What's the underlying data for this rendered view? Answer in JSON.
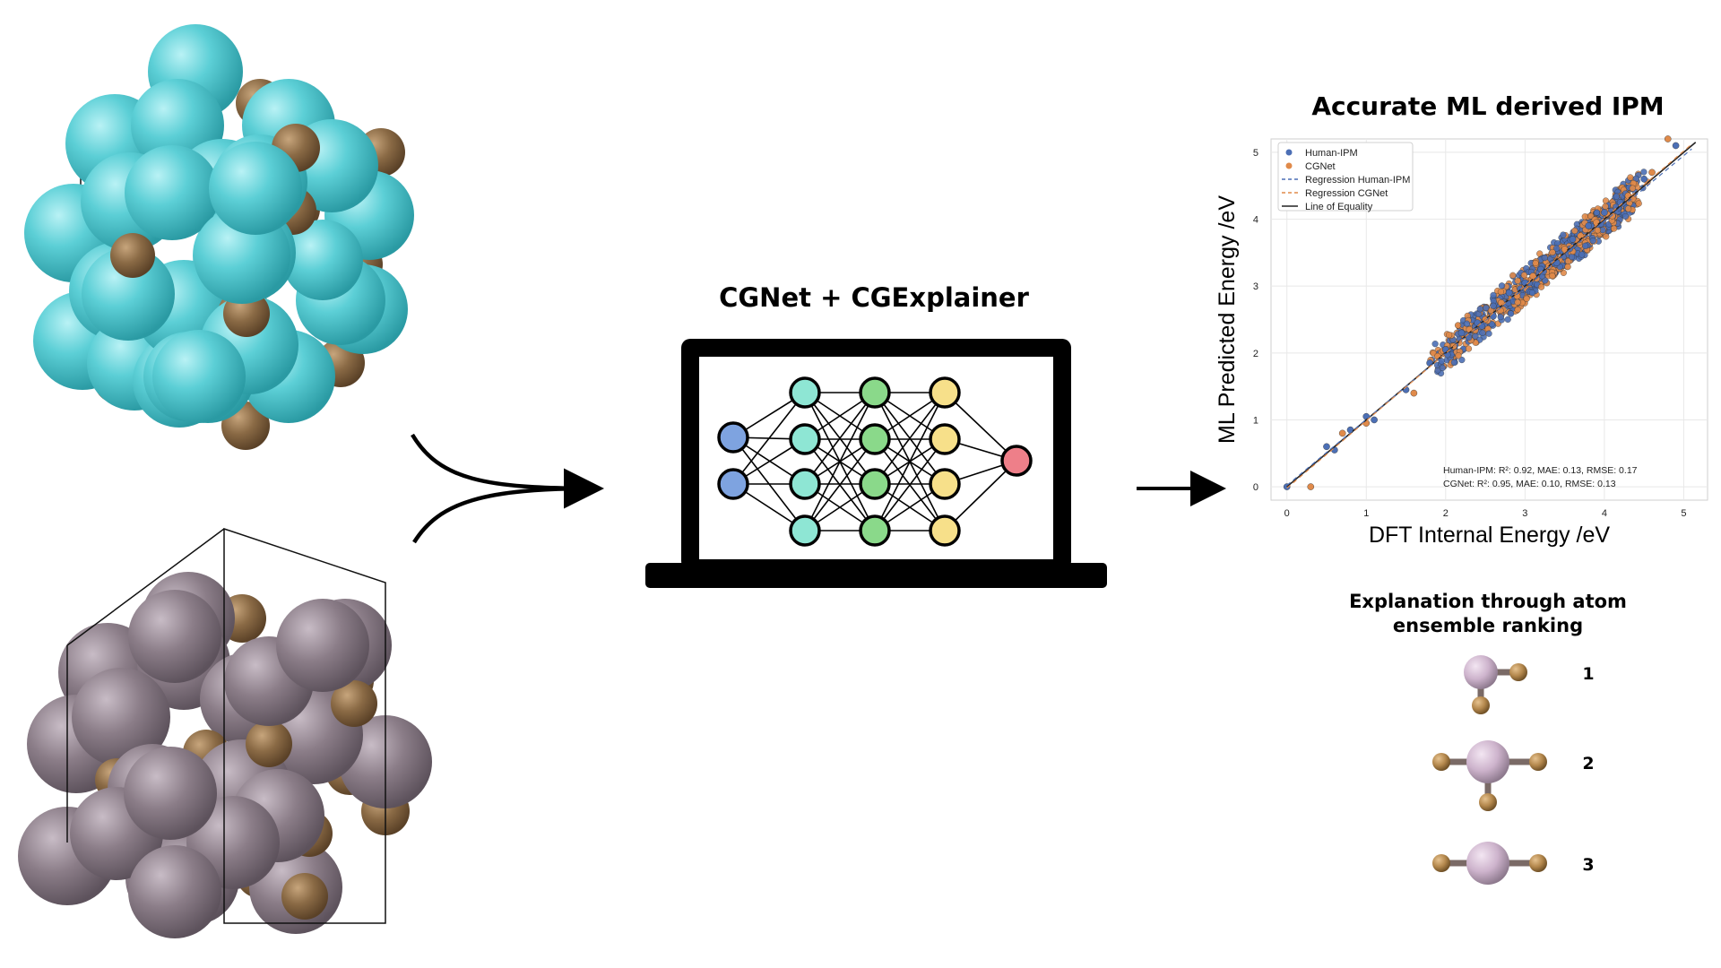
{
  "colors": {
    "cyan_atom": "#5ccfd6",
    "brown_atom": "#8a6a45",
    "mauve_atom": "#8b7d88",
    "blue_node": "#7ea3e0",
    "teal_node": "#8ee6d4",
    "green_node": "#8ad98a",
    "yellow_node": "#f7e08a",
    "red_node": "#ee7f89",
    "human_ipm": "#4c6fb5",
    "cgnet": "#e08a4a"
  },
  "center": {
    "title": "CGNet + CGExplainer"
  },
  "plot": {
    "title": "Accurate ML derived IPM",
    "stats": {
      "human_line": "Human-IPM: R²: 0.92, MAE: 0.13, RMSE: 0.17",
      "cgnet_line": "CGNet: R²: 0.95, MAE: 0.10, RMSE: 0.13"
    }
  },
  "chart_data": {
    "type": "scatter",
    "title": "Accurate ML derived IPM",
    "xlabel": "DFT Internal Energy /eV",
    "ylabel": "ML Predicted Energy /eV",
    "xlim": [
      -0.2,
      5.3
    ],
    "ylim": [
      -0.2,
      5.2
    ],
    "xticks": [
      "0",
      "1",
      "2",
      "3",
      "4",
      "5"
    ],
    "yticks": [
      "0",
      "1",
      "2",
      "3",
      "4",
      "5"
    ],
    "grid": true,
    "legend_position": "top-left",
    "legend": [
      "Human-IPM",
      "CGNet",
      "Regression Human-IPM",
      "Regression CGNet",
      "Line of Equality"
    ],
    "series": [
      {
        "name": "Human-IPM",
        "color": "#4c6fb5",
        "points": [
          [
            0.0,
            0.0
          ],
          [
            0.5,
            0.6
          ],
          [
            0.6,
            0.55
          ],
          [
            0.8,
            0.85
          ],
          [
            1.0,
            1.05
          ],
          [
            1.1,
            1.0
          ],
          [
            1.5,
            1.45
          ],
          [
            1.8,
            1.85
          ],
          [
            2.0,
            2.05
          ],
          [
            2.2,
            2.3
          ],
          [
            2.4,
            2.45
          ],
          [
            2.6,
            2.55
          ],
          [
            2.8,
            2.9
          ],
          [
            3.0,
            3.05
          ],
          [
            3.2,
            3.25
          ],
          [
            3.4,
            3.35
          ],
          [
            3.6,
            3.7
          ],
          [
            3.8,
            3.9
          ],
          [
            4.0,
            4.1
          ],
          [
            4.2,
            4.25
          ],
          [
            4.5,
            4.6
          ],
          [
            4.9,
            5.1
          ]
        ]
      },
      {
        "name": "CGNet",
        "color": "#e08a4a",
        "points": [
          [
            0.3,
            0.0
          ],
          [
            0.7,
            0.8
          ],
          [
            1.0,
            0.95
          ],
          [
            1.6,
            1.4
          ],
          [
            1.9,
            1.95
          ],
          [
            2.1,
            2.1
          ],
          [
            2.3,
            2.35
          ],
          [
            2.5,
            2.5
          ],
          [
            2.7,
            2.75
          ],
          [
            2.9,
            2.85
          ],
          [
            3.1,
            3.15
          ],
          [
            3.3,
            3.3
          ],
          [
            3.5,
            3.55
          ],
          [
            3.7,
            3.75
          ],
          [
            3.9,
            3.95
          ],
          [
            4.1,
            4.05
          ],
          [
            4.3,
            4.35
          ],
          [
            4.6,
            4.7
          ],
          [
            4.8,
            5.2
          ]
        ]
      }
    ],
    "lines": [
      {
        "name": "Regression Human-IPM",
        "style": "dashed",
        "color": "#4c6fb5"
      },
      {
        "name": "Regression CGNet",
        "style": "dashed",
        "color": "#e08a4a"
      },
      {
        "name": "Line of Equality",
        "style": "solid",
        "color": "#222222"
      }
    ]
  },
  "explanation": {
    "title_line1": "Explanation through atom",
    "title_line2": "ensemble ranking",
    "ranks": [
      "1",
      "2",
      "3"
    ]
  }
}
